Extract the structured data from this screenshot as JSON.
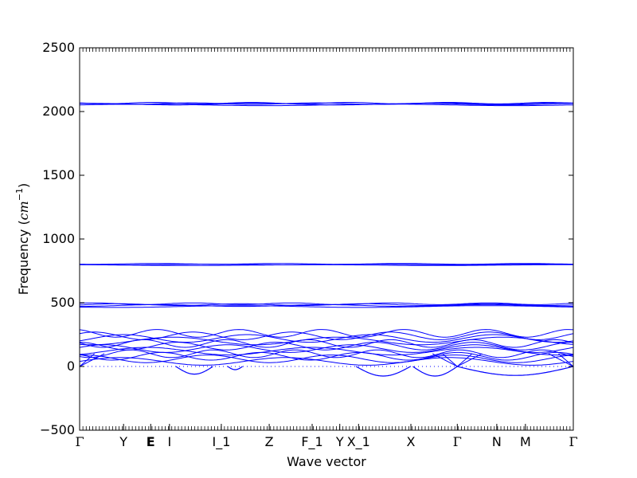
{
  "chart_data": {
    "type": "line",
    "title": "",
    "xlabel": "Wave vector",
    "ylabel": "Frequency (cm^{-1})",
    "ylabel_prefix": "Frequency (",
    "ylabel_unit": "cm",
    "ylabel_exp": "−1",
    "ylabel_suffix": ")",
    "ylim": [
      -500,
      2500
    ],
    "yticks": [
      "−500",
      "0",
      "500",
      "1000",
      "1500",
      "2000",
      "2500"
    ],
    "ytick_values": [
      -500,
      0,
      500,
      1000,
      1500,
      2000,
      2500
    ],
    "xlim": [
      0,
      1
    ],
    "high_symmetry_points": [
      {
        "label": "Γ",
        "x": 0.0
      },
      {
        "label": "Y",
        "x": 0.089
      },
      {
        "label": "E",
        "x": 0.144
      },
      {
        "label": "I",
        "x": 0.182
      },
      {
        "label": "I_1",
        "x": 0.287
      },
      {
        "label": "Z",
        "x": 0.384
      },
      {
        "label": "F_1",
        "x": 0.471
      },
      {
        "label": "Y",
        "x": 0.527
      },
      {
        "label": "X_1",
        "x": 0.565
      },
      {
        "label": "X",
        "x": 0.671
      },
      {
        "label": "Γ",
        "x": 0.765
      },
      {
        "label": "N",
        "x": 0.845
      },
      {
        "label": "M",
        "x": 0.903
      },
      {
        "label": "Γ",
        "x": 1.0
      }
    ],
    "zero_line": true,
    "line_color": "#0000ff",
    "grid": false,
    "legend": "none",
    "bands": {
      "high_group": [
        2052,
        2058,
        2062,
        2066
      ],
      "mid_group": [
        795,
        800,
        805
      ],
      "low_group": [
        470,
        478,
        485,
        492
      ],
      "acoustic_cluster": [
        40,
        60,
        80,
        100,
        120,
        140,
        160,
        180,
        200,
        220,
        240,
        260
      ]
    },
    "imaginary_modes": [
      {
        "x_start": 0.195,
        "x_end": 0.27,
        "min_y": -60
      },
      {
        "x_start": 0.3,
        "x_end": 0.33,
        "min_y": -25
      },
      {
        "x_start": 0.56,
        "x_end": 0.67,
        "min_y": -75
      },
      {
        "x_start": 0.675,
        "x_end": 0.765,
        "min_y": -75
      },
      {
        "x_start": 0.765,
        "x_end": 1.0,
        "min_y": -70
      }
    ]
  }
}
